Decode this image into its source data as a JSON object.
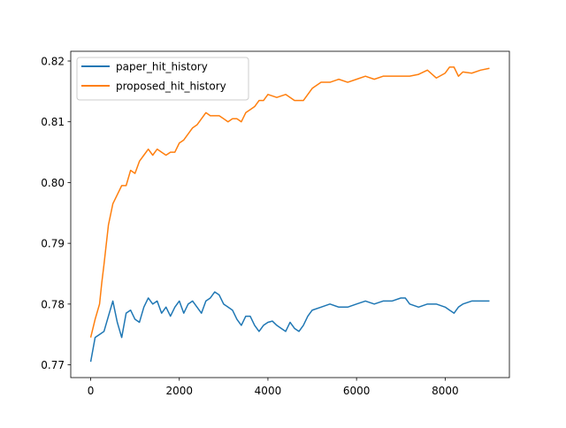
{
  "chart_data": {
    "type": "line",
    "title": "",
    "xlabel": "",
    "ylabel": "",
    "xlim": [
      -450,
      9450
    ],
    "ylim": [
      0.7679,
      0.8216
    ],
    "x_ticks": [
      0,
      2000,
      4000,
      6000,
      8000
    ],
    "x_tick_labels": [
      "0",
      "2000",
      "4000",
      "6000",
      "8000"
    ],
    "y_ticks": [
      0.77,
      0.78,
      0.79,
      0.8,
      0.81,
      0.82
    ],
    "y_tick_labels": [
      "0.77",
      "0.78",
      "0.79",
      "0.80",
      "0.81",
      "0.82"
    ],
    "grid": false,
    "legend_position": "upper-left",
    "series": [
      {
        "name": "paper_hit_history",
        "color": "#1f77b4",
        "x": [
          0,
          100,
          200,
          300,
          400,
          500,
          600,
          700,
          800,
          900,
          1000,
          1100,
          1200,
          1300,
          1400,
          1500,
          1600,
          1700,
          1800,
          1900,
          2000,
          2100,
          2200,
          2300,
          2400,
          2500,
          2600,
          2700,
          2800,
          2900,
          3000,
          3100,
          3200,
          3300,
          3400,
          3500,
          3600,
          3700,
          3800,
          3900,
          4000,
          4100,
          4200,
          4300,
          4400,
          4500,
          4600,
          4700,
          4800,
          4900,
          5000,
          5200,
          5400,
          5600,
          5800,
          6000,
          6200,
          6400,
          6600,
          6800,
          7000,
          7100,
          7200,
          7400,
          7600,
          7800,
          8000,
          8200,
          8300,
          8400,
          8600,
          8800,
          9000
        ],
        "y": [
          0.7705,
          0.7745,
          0.775,
          0.7755,
          0.778,
          0.7805,
          0.777,
          0.7745,
          0.7785,
          0.779,
          0.7775,
          0.777,
          0.7795,
          0.781,
          0.78,
          0.7805,
          0.7785,
          0.7795,
          0.778,
          0.7795,
          0.7805,
          0.7785,
          0.78,
          0.7805,
          0.7795,
          0.7785,
          0.7805,
          0.781,
          0.782,
          0.7815,
          0.78,
          0.7795,
          0.779,
          0.7775,
          0.7765,
          0.778,
          0.778,
          0.7765,
          0.7755,
          0.7765,
          0.777,
          0.7772,
          0.7765,
          0.776,
          0.7755,
          0.777,
          0.776,
          0.7755,
          0.7765,
          0.778,
          0.779,
          0.7795,
          0.78,
          0.7795,
          0.7795,
          0.78,
          0.7805,
          0.78,
          0.7805,
          0.7805,
          0.781,
          0.781,
          0.78,
          0.7795,
          0.78,
          0.78,
          0.7795,
          0.7785,
          0.7795,
          0.78,
          0.7805,
          0.7805,
          0.7805
        ]
      },
      {
        "name": "proposed_hit_history",
        "color": "#ff7f0e",
        "x": [
          0,
          100,
          200,
          250,
          300,
          400,
          500,
          600,
          700,
          800,
          900,
          1000,
          1100,
          1200,
          1300,
          1400,
          1500,
          1600,
          1700,
          1800,
          1900,
          2000,
          2100,
          2200,
          2300,
          2400,
          2500,
          2600,
          2700,
          2800,
          2900,
          3000,
          3100,
          3200,
          3300,
          3400,
          3500,
          3600,
          3700,
          3800,
          3900,
          4000,
          4200,
          4400,
          4600,
          4800,
          5000,
          5200,
          5400,
          5600,
          5800,
          6000,
          6200,
          6400,
          6600,
          6800,
          7000,
          7200,
          7400,
          7600,
          7800,
          8000,
          8100,
          8200,
          8300,
          8400,
          8600,
          8800,
          9000
        ],
        "y": [
          0.7745,
          0.7775,
          0.78,
          0.7835,
          0.7865,
          0.793,
          0.7965,
          0.798,
          0.7995,
          0.7995,
          0.802,
          0.8015,
          0.8035,
          0.8045,
          0.8055,
          0.8045,
          0.8055,
          0.805,
          0.8045,
          0.805,
          0.805,
          0.8065,
          0.807,
          0.808,
          0.809,
          0.8095,
          0.8105,
          0.8115,
          0.811,
          0.811,
          0.811,
          0.8105,
          0.81,
          0.8105,
          0.8105,
          0.81,
          0.8115,
          0.812,
          0.8125,
          0.8135,
          0.8135,
          0.8145,
          0.814,
          0.8145,
          0.8135,
          0.8135,
          0.8155,
          0.8165,
          0.8165,
          0.817,
          0.8165,
          0.817,
          0.8175,
          0.817,
          0.8175,
          0.8175,
          0.8175,
          0.8175,
          0.8178,
          0.8185,
          0.8172,
          0.818,
          0.819,
          0.819,
          0.8175,
          0.8182,
          0.818,
          0.8185,
          0.8188
        ]
      }
    ]
  }
}
